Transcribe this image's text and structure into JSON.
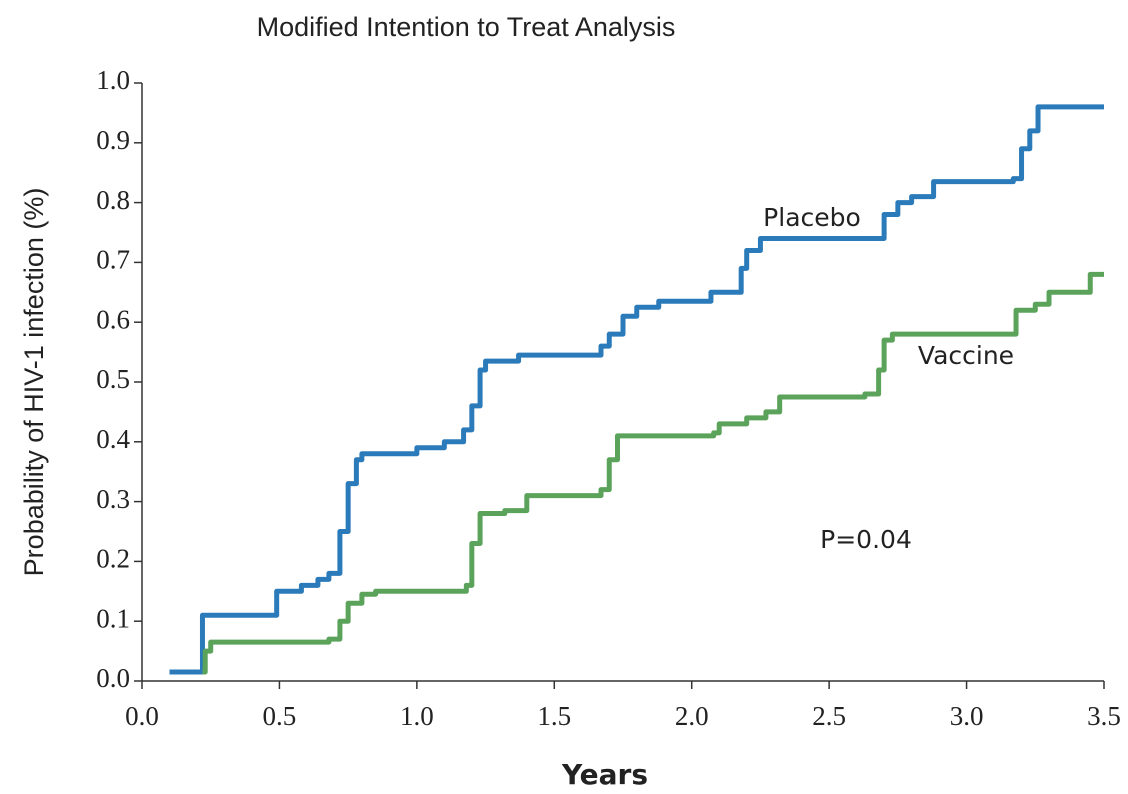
{
  "chart_data": {
    "type": "line",
    "step": "post",
    "title": "Modified Intention to Treat Analysis",
    "xlabel": "Years",
    "ylabel": "Probability of HIV-1 infection (%)",
    "annotations": [
      "Placebo",
      "Vaccine",
      "P=0.04"
    ],
    "xlim": [
      0,
      3.5
    ],
    "ylim": [
      0,
      1
    ],
    "xticks": [
      {
        "value": 0,
        "label": "0.0"
      },
      0.5,
      {
        "value": 1,
        "label": "1.0"
      },
      1.5,
      {
        "value": 2,
        "label": "2.0"
      },
      2.5,
      {
        "value": 3,
        "label": "3.0"
      },
      3.5
    ],
    "yticks": [
      {
        "value": 0,
        "label": "0.0"
      },
      0.1,
      0.2,
      0.3,
      0.4,
      0.5,
      0.6,
      0.7,
      0.8,
      0.9,
      {
        "value": 1,
        "label": "1.0"
      }
    ],
    "series": [
      {
        "name": "Placebo",
        "color": "#2b7bba",
        "x": [
          0.1,
          0.22,
          0.49,
          0.58,
          0.64,
          0.68,
          0.72,
          0.75,
          0.78,
          0.8,
          1.0,
          1.1,
          1.17,
          1.2,
          1.23,
          1.25,
          1.37,
          1.67,
          1.7,
          1.75,
          1.8,
          1.88,
          2.07,
          2.18,
          2.2,
          2.25,
          2.7,
          2.75,
          2.8,
          2.88,
          3.17,
          3.2,
          3.23,
          3.26,
          3.5
        ],
        "values": [
          0.015,
          0.11,
          0.15,
          0.16,
          0.17,
          0.18,
          0.25,
          0.33,
          0.37,
          0.38,
          0.39,
          0.4,
          0.42,
          0.46,
          0.52,
          0.535,
          0.545,
          0.56,
          0.58,
          0.61,
          0.625,
          0.635,
          0.65,
          0.69,
          0.72,
          0.74,
          0.78,
          0.8,
          0.81,
          0.835,
          0.84,
          0.89,
          0.92,
          0.96,
          0.96
        ]
      },
      {
        "name": "Vaccine",
        "color": "#5ba35b",
        "x": [
          0.22,
          0.23,
          0.25,
          0.68,
          0.72,
          0.75,
          0.8,
          0.85,
          1.18,
          1.2,
          1.23,
          1.32,
          1.4,
          1.67,
          1.7,
          1.73,
          2.08,
          2.1,
          2.2,
          2.27,
          2.32,
          2.63,
          2.68,
          2.7,
          2.73,
          3.18,
          3.25,
          3.3,
          3.45,
          3.5
        ],
        "values": [
          0.015,
          0.05,
          0.065,
          0.07,
          0.1,
          0.13,
          0.145,
          0.15,
          0.16,
          0.23,
          0.28,
          0.285,
          0.31,
          0.32,
          0.37,
          0.41,
          0.415,
          0.43,
          0.44,
          0.45,
          0.475,
          0.48,
          0.52,
          0.57,
          0.58,
          0.62,
          0.63,
          0.65,
          0.68,
          0.68
        ]
      }
    ]
  }
}
